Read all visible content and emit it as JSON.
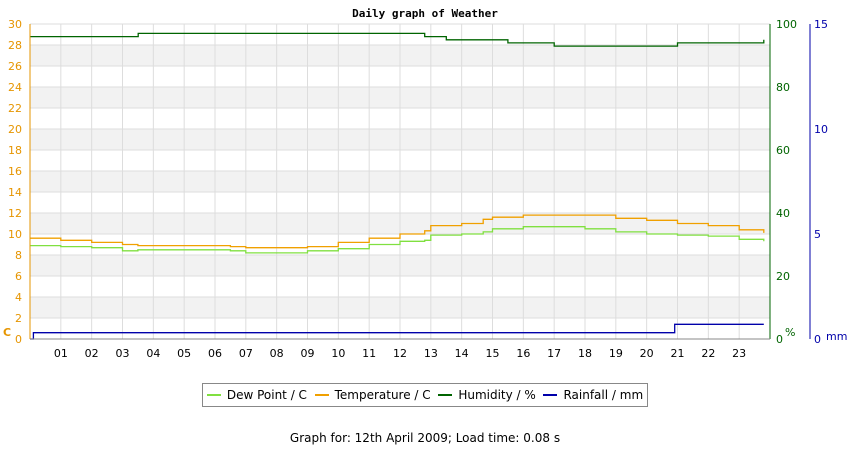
{
  "chart_data": {
    "type": "line",
    "title": "Daily graph of Weather",
    "left_axis": {
      "unit_label": "C",
      "ticks": [
        "0",
        "2",
        "4",
        "6",
        "8",
        "10",
        "12",
        "14",
        "16",
        "18",
        "20",
        "22",
        "24",
        "26",
        "28",
        "30"
      ],
      "range": [
        0,
        30
      ],
      "color": "#e69500"
    },
    "humidity_axis": {
      "unit_label": "%",
      "ticks": [
        "0",
        "20",
        "40",
        "60",
        "80",
        "100"
      ],
      "range": [
        0,
        100
      ],
      "color": "#006400"
    },
    "rain_axis": {
      "unit_label": "mm",
      "ticks": [
        "0",
        "5",
        "10",
        "15"
      ],
      "range": [
        0,
        15
      ],
      "color": "#0000aa"
    },
    "x_axis": {
      "ticks": [
        "01",
        "02",
        "03",
        "04",
        "05",
        "06",
        "07",
        "08",
        "09",
        "10",
        "11",
        "12",
        "13",
        "14",
        "15",
        "16",
        "17",
        "18",
        "19",
        "20",
        "21",
        "22",
        "23"
      ],
      "range": [
        0,
        24
      ]
    },
    "series": [
      {
        "name": "Dew Point / C",
        "color": "#80e040",
        "axis": "left",
        "x": [
          0,
          1,
          2,
          3,
          3.5,
          5,
          6.5,
          7,
          8,
          9,
          10,
          11,
          12,
          12.8,
          13,
          14,
          14.7,
          15,
          16,
          17,
          18,
          19,
          20,
          21,
          22,
          23,
          23.8
        ],
        "y": [
          8.9,
          8.8,
          8.7,
          8.4,
          8.5,
          8.5,
          8.4,
          8.2,
          8.2,
          8.4,
          8.6,
          9.0,
          9.3,
          9.4,
          9.9,
          10.0,
          10.2,
          10.5,
          10.7,
          10.7,
          10.5,
          10.2,
          10.0,
          9.9,
          9.8,
          9.5,
          9.3
        ]
      },
      {
        "name": "Temperature / C",
        "color": "#f0a000",
        "axis": "left",
        "x": [
          0,
          1,
          2,
          3,
          3.5,
          5,
          6.5,
          7,
          8,
          9,
          10,
          11,
          12,
          12.8,
          13,
          14,
          14.7,
          15,
          16,
          17,
          18,
          19,
          20,
          21,
          22,
          23,
          23.8
        ],
        "y": [
          9.6,
          9.4,
          9.2,
          9.0,
          8.9,
          8.9,
          8.8,
          8.7,
          8.7,
          8.8,
          9.2,
          9.6,
          10.0,
          10.3,
          10.8,
          11.0,
          11.4,
          11.6,
          11.8,
          11.8,
          11.8,
          11.5,
          11.3,
          11.0,
          10.8,
          10.4,
          10.1
        ]
      },
      {
        "name": "Humidity / %",
        "color": "#006400",
        "axis": "humidity",
        "x": [
          0,
          3.5,
          3.51,
          12.2,
          12.8,
          13,
          13.5,
          14.5,
          15.5,
          16.5,
          17,
          19.5,
          20.5,
          21,
          22,
          23.5,
          23.8
        ],
        "y": [
          96,
          96,
          97,
          97,
          96,
          96,
          95,
          95,
          94,
          94,
          93,
          93,
          93,
          94,
          94,
          94,
          95
        ]
      },
      {
        "name": "Rainfall / mm",
        "color": "#0000aa",
        "axis": "rain",
        "x": [
          0,
          0.1,
          0.11,
          20.9,
          20.91,
          23.8
        ],
        "y": [
          0,
          0,
          0.3,
          0.3,
          0.7,
          0.7
        ]
      }
    ]
  },
  "legend": [
    {
      "label": "Dew Point / C",
      "color": "#80e040"
    },
    {
      "label": "Temperature / C",
      "color": "#f0a000"
    },
    {
      "label": "Humidity / %",
      "color": "#006400"
    },
    {
      "label": "Rainfall / mm",
      "color": "#0000aa"
    }
  ],
  "footer": "Graph for: 12th April 2009; Load time: 0.08 s"
}
